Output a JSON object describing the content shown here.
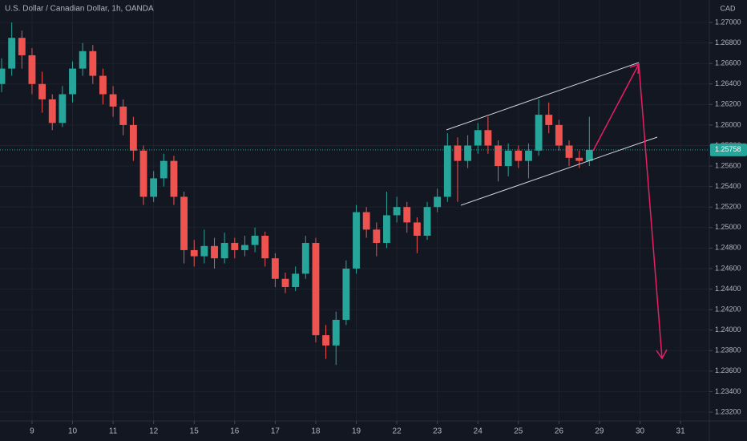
{
  "chart_data": {
    "type": "candlestick",
    "title": "U.S. Dollar / Canadian Dollar, 1h, OANDA",
    "currency": "CAD",
    "last_price": 1.25758,
    "up_color": "#26a69a",
    "down_color": "#ef5350",
    "grid": true,
    "xlim": [
      -0.79,
      16.71
    ],
    "ylim": [
      1.23114,
      1.27219
    ],
    "xticks": [
      {
        "value": 0,
        "label": "9"
      },
      {
        "value": 1,
        "label": "10"
      },
      {
        "value": 2,
        "label": "11"
      },
      {
        "value": 3,
        "label": "12"
      },
      {
        "value": 4,
        "label": "15"
      },
      {
        "value": 5,
        "label": "16"
      },
      {
        "value": 6,
        "label": "17"
      },
      {
        "value": 7,
        "label": "18"
      },
      {
        "value": 8,
        "label": "19"
      },
      {
        "value": 9,
        "label": "22"
      },
      {
        "value": 10,
        "label": "23"
      },
      {
        "value": 11,
        "label": "24"
      },
      {
        "value": 12,
        "label": "25"
      },
      {
        "value": 13,
        "label": "26"
      },
      {
        "value": 14,
        "label": "29"
      },
      {
        "value": 15,
        "label": "30"
      },
      {
        "value": 16,
        "label": "31"
      }
    ],
    "yticks": [
      {
        "value": 1.232,
        "label": "1.23200"
      },
      {
        "value": 1.234,
        "label": "1.23400"
      },
      {
        "value": 1.236,
        "label": "1.23600"
      },
      {
        "value": 1.238,
        "label": "1.23800"
      },
      {
        "value": 1.24,
        "label": "1.24000"
      },
      {
        "value": 1.242,
        "label": "1.24200"
      },
      {
        "value": 1.244,
        "label": "1.24400"
      },
      {
        "value": 1.246,
        "label": "1.24600"
      },
      {
        "value": 1.248,
        "label": "1.24800"
      },
      {
        "value": 1.25,
        "label": "1.25000"
      },
      {
        "value": 1.252,
        "label": "1.25200"
      },
      {
        "value": 1.254,
        "label": "1.25400"
      },
      {
        "value": 1.256,
        "label": "1.25600"
      },
      {
        "value": 1.258,
        "label": "1.25800"
      },
      {
        "value": 1.26,
        "label": "1.26000"
      },
      {
        "value": 1.262,
        "label": "1.26200"
      },
      {
        "value": 1.264,
        "label": "1.26400"
      },
      {
        "value": 1.266,
        "label": "1.26600"
      },
      {
        "value": 1.268,
        "label": "1.26800"
      },
      {
        "value": 1.27,
        "label": "1.27000"
      }
    ],
    "x": [
      -0.75,
      -0.5,
      -0.25,
      0,
      0.25,
      0.5,
      0.75,
      1,
      1.25,
      1.5,
      1.75,
      2,
      2.25,
      2.5,
      2.75,
      3,
      3.25,
      3.5,
      3.75,
      4,
      4.25,
      4.5,
      4.75,
      5,
      5.25,
      5.5,
      5.75,
      6,
      6.25,
      6.5,
      6.75,
      7,
      7.25,
      7.5,
      7.75,
      8,
      8.25,
      8.5,
      8.75,
      9,
      9.25,
      9.5,
      9.75,
      10,
      10.25,
      10.5,
      10.75,
      11,
      11.25,
      11.5,
      11.75,
      12,
      12.25,
      12.5,
      12.75,
      13,
      13.25,
      13.5,
      13.75
    ],
    "open": [
      1.264,
      1.2655,
      1.2685,
      1.2668,
      1.264,
      1.2625,
      1.2602,
      1.263,
      1.2655,
      1.2672,
      1.2648,
      1.263,
      1.2618,
      1.26,
      1.2575,
      1.253,
      1.2548,
      1.2565,
      1.253,
      1.2478,
      1.2472,
      1.2482,
      1.247,
      1.2485,
      1.2478,
      1.2483,
      1.2492,
      1.247,
      1.245,
      1.2442,
      1.2455,
      1.2485,
      1.2395,
      1.2385,
      1.241,
      1.246,
      1.2515,
      1.2498,
      1.2485,
      1.2512,
      1.252,
      1.2505,
      1.2492,
      1.252,
      1.253,
      1.258,
      1.2565,
      1.258,
      1.2595,
      1.258,
      1.256,
      1.2575,
      1.2565,
      1.2575,
      1.261,
      1.26,
      1.258,
      1.2568,
      1.2565
    ],
    "high": [
      1.2665,
      1.27,
      1.2692,
      1.2675,
      1.2652,
      1.263,
      1.2638,
      1.2662,
      1.268,
      1.2678,
      1.2655,
      1.2638,
      1.2625,
      1.2608,
      1.258,
      1.2555,
      1.2572,
      1.257,
      1.2535,
      1.2488,
      1.2498,
      1.249,
      1.2495,
      1.249,
      1.2492,
      1.25,
      1.2496,
      1.2475,
      1.2456,
      1.2462,
      1.2492,
      1.249,
      1.2405,
      1.2418,
      1.2468,
      1.2522,
      1.252,
      1.2505,
      1.2535,
      1.253,
      1.2525,
      1.251,
      1.2525,
      1.2538,
      1.2592,
      1.2588,
      1.259,
      1.2602,
      1.2608,
      1.2585,
      1.2582,
      1.258,
      1.2582,
      1.2625,
      1.2622,
      1.2605,
      1.2585,
      1.2575,
      1.2608
    ],
    "low": [
      1.2632,
      1.2648,
      1.2655,
      1.263,
      1.2612,
      1.2595,
      1.2598,
      1.2622,
      1.2648,
      1.264,
      1.262,
      1.2608,
      1.259,
      1.2565,
      1.2522,
      1.2525,
      1.254,
      1.2522,
      1.2465,
      1.2462,
      1.2465,
      1.246,
      1.2465,
      1.247,
      1.2472,
      1.2476,
      1.2462,
      1.2442,
      1.2436,
      1.2438,
      1.245,
      1.2388,
      1.2372,
      1.2366,
      1.2405,
      1.2455,
      1.249,
      1.2472,
      1.248,
      1.2505,
      1.2495,
      1.2475,
      1.2488,
      1.2515,
      1.2525,
      1.2525,
      1.2558,
      1.2572,
      1.2572,
      1.2545,
      1.255,
      1.2558,
      1.2548,
      1.257,
      1.2592,
      1.2575,
      1.256,
      1.2558,
      1.256
    ],
    "close": [
      1.2655,
      1.2685,
      1.2668,
      1.264,
      1.2625,
      1.2602,
      1.263,
      1.2655,
      1.2672,
      1.2648,
      1.263,
      1.2618,
      1.26,
      1.2575,
      1.253,
      1.2548,
      1.2565,
      1.253,
      1.2478,
      1.2472,
      1.2482,
      1.247,
      1.2485,
      1.2478,
      1.2483,
      1.2492,
      1.247,
      1.245,
      1.2442,
      1.2455,
      1.2485,
      1.2395,
      1.2385,
      1.241,
      1.246,
      1.2515,
      1.2498,
      1.2485,
      1.2512,
      1.252,
      1.2505,
      1.2492,
      1.252,
      1.253,
      1.258,
      1.2565,
      1.258,
      1.2595,
      1.258,
      1.256,
      1.2575,
      1.2565,
      1.2575,
      1.261,
      1.26,
      1.258,
      1.2568,
      1.2565,
      1.25758
    ]
  }
}
